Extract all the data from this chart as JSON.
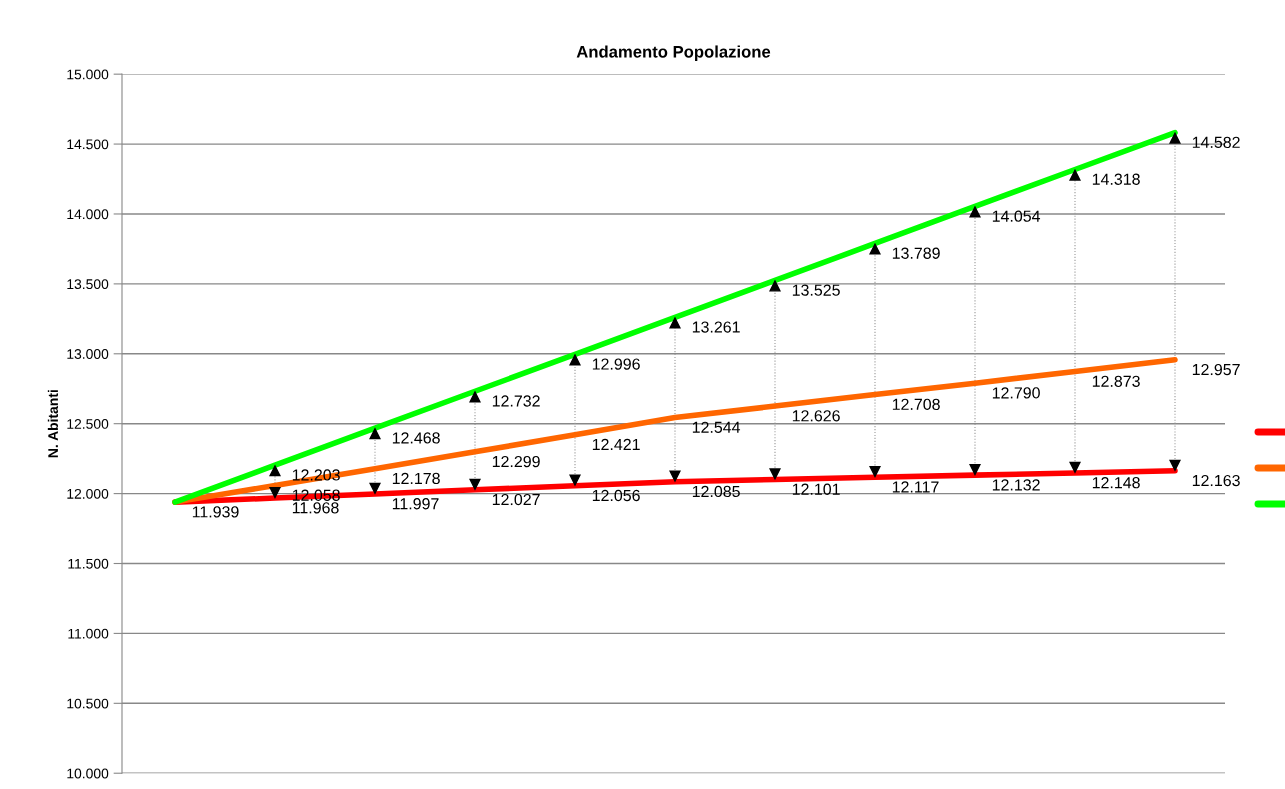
{
  "chart_data": {
    "type": "line",
    "title": "Andamento Popolazione",
    "ylabel": "N. Abitanti",
    "categories": [
      null,
      null,
      null,
      null,
      null,
      null,
      null,
      null,
      null,
      null,
      null
    ],
    "series": [
      {
        "color": "#ff0000",
        "values": [
          11939,
          11968,
          11997,
          12027,
          12056,
          12085,
          12101,
          12117,
          12132,
          12148,
          12163
        ],
        "value_labels": [
          null,
          "11.968",
          "11.997",
          "12.027",
          "12.056",
          "12.085",
          "12.101",
          "12.117",
          "12.132",
          "12.148",
          "12.163"
        ]
      },
      {
        "color": "#ff6600",
        "values": [
          11939,
          12058,
          12178,
          12299,
          12421,
          12544,
          12626,
          12708,
          12790,
          12873,
          12957
        ],
        "value_labels": [
          null,
          "12.058",
          "12.178",
          "12.299",
          "12.421",
          "12.544",
          "12.626",
          "12.708",
          "12.790",
          "12.873",
          "12.957"
        ]
      },
      {
        "color": "#00ff00",
        "values": [
          11939,
          12203,
          12468,
          12732,
          12996,
          13261,
          13525,
          13789,
          14054,
          14318,
          14582
        ],
        "value_labels": [
          "11.939",
          "12.203",
          "12.468",
          "12.732",
          "12.996",
          "13.261",
          "13.525",
          "13.789",
          "14.054",
          "14.318",
          "14.582"
        ]
      }
    ],
    "ylim": [
      10000,
      15000
    ],
    "yticks": [
      {
        "value": 10000,
        "label": "10.000"
      },
      {
        "value": 10500,
        "label": "10.500"
      },
      {
        "value": 11000,
        "label": "11.000"
      },
      {
        "value": 11500,
        "label": "11.500"
      },
      {
        "value": 12000,
        "label": "12.000"
      },
      {
        "value": 12500,
        "label": "12.500"
      },
      {
        "value": 13000,
        "label": "13.000"
      },
      {
        "value": 13500,
        "label": "13.500"
      },
      {
        "value": 14000,
        "label": "14.000"
      },
      {
        "value": 14500,
        "label": "14.500"
      },
      {
        "value": 15000,
        "label": "15.000"
      }
    ],
    "grid": "y",
    "marker": "none",
    "line_style": "solid"
  }
}
